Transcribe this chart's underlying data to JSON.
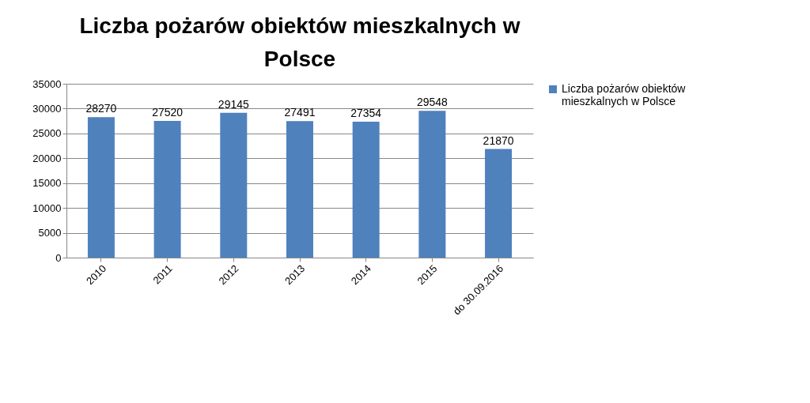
{
  "chart_data": {
    "type": "bar",
    "title": "Liczba pożarów obiektów mieszkalnych w Polsce",
    "categories": [
      "2010",
      "2011",
      "2012",
      "2013",
      "2014",
      "2015",
      "do 30.09.2016"
    ],
    "series": [
      {
        "name": "Liczba pożarów obiektów mieszkalnych w Polsce",
        "color": "#4f81bd",
        "values": [
          28270,
          27520,
          29145,
          27491,
          27354,
          29548,
          21870
        ]
      }
    ],
    "ylim": [
      0,
      35000
    ],
    "yticks": [
      0,
      5000,
      10000,
      15000,
      20000,
      25000,
      30000,
      35000
    ],
    "grid": "y",
    "legend": "right",
    "data_labels": true
  }
}
